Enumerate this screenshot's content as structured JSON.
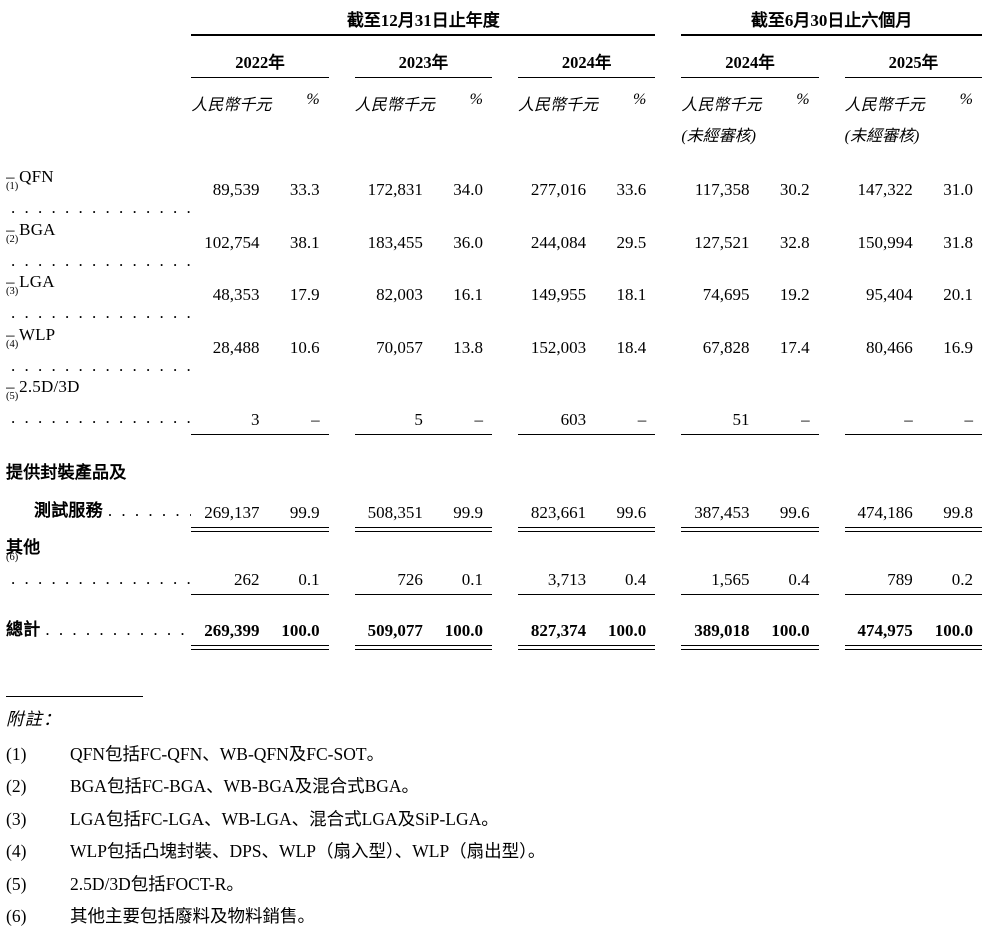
{
  "page": {
    "background": "#ffffff",
    "text_color": "#000000"
  },
  "table": {
    "period_headers": [
      "截至12月31日止年度",
      "截至6月30日止六個月"
    ],
    "years": [
      "2022年",
      "2023年",
      "2024年",
      "2024年",
      "2025年"
    ],
    "unit_label": "人民幣千元",
    "pct_label": "%",
    "unaudited": "(未經審核)",
    "rows": [
      {
        "label": "– QFN",
        "note": "(1)",
        "dots": ". . . . . . . . . . . . . . . . . . . .",
        "values": [
          "89,539",
          "33.3",
          "172,831",
          "34.0",
          "277,016",
          "33.6",
          "117,358",
          "30.2",
          "147,322",
          "31.0"
        ]
      },
      {
        "label": "– BGA",
        "note": "(2)",
        "dots": ". . . . . . . . . . . . . . . . . . . .",
        "values": [
          "102,754",
          "38.1",
          "183,455",
          "36.0",
          "244,084",
          "29.5",
          "127,521",
          "32.8",
          "150,994",
          "31.8"
        ]
      },
      {
        "label": "– LGA",
        "note": "(3)",
        "dots": ". . . . . . . . . . . . . . . . . . . .",
        "values": [
          "48,353",
          "17.9",
          "82,003",
          "16.1",
          "149,955",
          "18.1",
          "74,695",
          "19.2",
          "95,404",
          "20.1"
        ]
      },
      {
        "label": "– WLP",
        "note": "(4)",
        "dots": ". . . . . . . . . . . . . . . . . . . .",
        "values": [
          "28,488",
          "10.6",
          "70,057",
          "13.8",
          "152,003",
          "18.4",
          "67,828",
          "17.4",
          "80,466",
          "16.9"
        ]
      },
      {
        "label": "– 2.5D/3D",
        "note": "(5)",
        "dots": ". . . . . . . . . . . . . . . . . . . .",
        "values": [
          "3",
          "–",
          "5",
          "–",
          "603",
          "–",
          "51",
          "–",
          "–",
          "–"
        ]
      },
      {
        "label": "提供封裝產品及"
      },
      {
        "label": "測試服務",
        "dots": ". . . . . . . . . . . . . . . . . . . .",
        "values": [
          "269,137",
          "99.9",
          "508,351",
          "99.9",
          "823,661",
          "99.6",
          "387,453",
          "99.6",
          "474,186",
          "99.8"
        ]
      },
      {
        "label": "其他",
        "note": "(6)",
        "dots": ". . . . . . . . . . . . . . . . . . . .",
        "values": [
          "262",
          "0.1",
          "726",
          "0.1",
          "3,713",
          "0.4",
          "1,565",
          "0.4",
          "789",
          "0.2"
        ]
      },
      {
        "label": "總計",
        "dots": ". . . . . . . . . . . . . . . . . . . .",
        "values": [
          "269,399",
          "100.0",
          "509,077",
          "100.0",
          "827,374",
          "100.0",
          "389,018",
          "100.0",
          "474,975",
          "100.0"
        ]
      }
    ]
  },
  "footnotes": {
    "heading": "附註：",
    "items": [
      {
        "num": "(1)",
        "text": "QFN包括FC-QFN、WB-QFN及FC-SOT。"
      },
      {
        "num": "(2)",
        "text": "BGA包括FC-BGA、WB-BGA及混合式BGA。"
      },
      {
        "num": "(3)",
        "text": "LGA包括FC-LGA、WB-LGA、混合式LGA及SiP-LGA。"
      },
      {
        "num": "(4)",
        "text": "WLP包括凸塊封裝、DPS、WLP（扇入型）、WLP（扇出型）。"
      },
      {
        "num": "(5)",
        "text": "2.5D/3D包括FOCT-R。"
      },
      {
        "num": "(6)",
        "text": "其他主要包括廢料及物料銷售。"
      }
    ]
  }
}
